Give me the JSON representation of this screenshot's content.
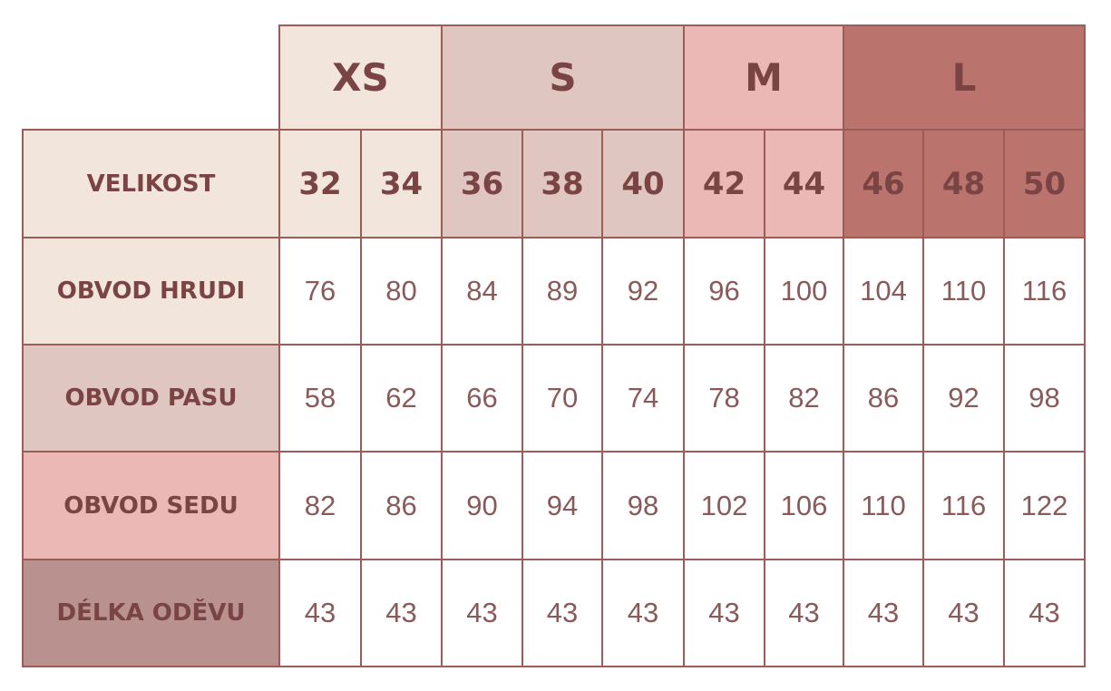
{
  "table": {
    "groups": [
      "XS",
      "S",
      "M",
      "L"
    ],
    "header": {
      "label": "VELIKOST",
      "sizes": [
        32,
        34,
        36,
        38,
        40,
        42,
        44,
        46,
        48,
        50
      ]
    },
    "rows": [
      {
        "label": "OBVOD HRUDI",
        "values": [
          76,
          80,
          84,
          89,
          92,
          96,
          100,
          104,
          110,
          116
        ]
      },
      {
        "label": "OBVOD PASU",
        "values": [
          58,
          62,
          66,
          70,
          74,
          78,
          82,
          86,
          92,
          98
        ]
      },
      {
        "label": "OBVOD SEDU",
        "values": [
          82,
          86,
          90,
          94,
          98,
          102,
          106,
          110,
          116,
          122
        ]
      },
      {
        "label": "DÉLKA ODĚVU",
        "values": [
          43,
          43,
          43,
          43,
          43,
          43,
          43,
          43,
          43,
          43
        ]
      }
    ]
  }
}
